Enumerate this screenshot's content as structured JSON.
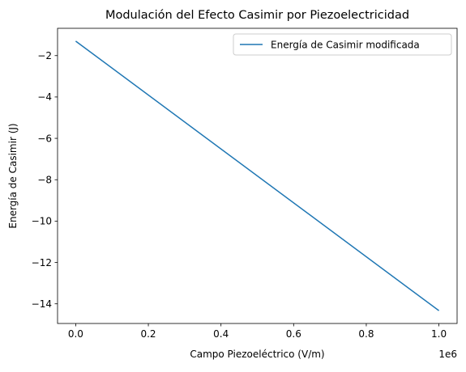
{
  "chart_data": {
    "type": "line",
    "title": "Modulación del Efecto Casimir por Piezoelectricidad",
    "xlabel": "Campo Piezoeléctrico (V/m)",
    "ylabel": "Energía de Casimir (J)",
    "x_offset_label": "1e6",
    "x_scale": 1000000,
    "xlim": [
      -50000,
      1050000
    ],
    "ylim": [
      -14.95,
      -0.68
    ],
    "x_ticks": [
      0,
      200000,
      400000,
      600000,
      800000,
      1000000
    ],
    "x_tick_labels": [
      "0.0",
      "0.2",
      "0.4",
      "0.6",
      "0.8",
      "1.0"
    ],
    "y_ticks": [
      -2,
      -4,
      -6,
      -8,
      -10,
      -12,
      -14
    ],
    "y_tick_labels": [
      "−2",
      "−4",
      "−6",
      "−8",
      "−10",
      "−12",
      "−14"
    ],
    "grid": false,
    "legend_position": "upper right",
    "series": [
      {
        "name": "Energía de Casimir modificada",
        "color": "#1f77b4",
        "x": [
          0,
          1000000
        ],
        "y": [
          -1.3,
          -14.33
        ]
      }
    ]
  }
}
